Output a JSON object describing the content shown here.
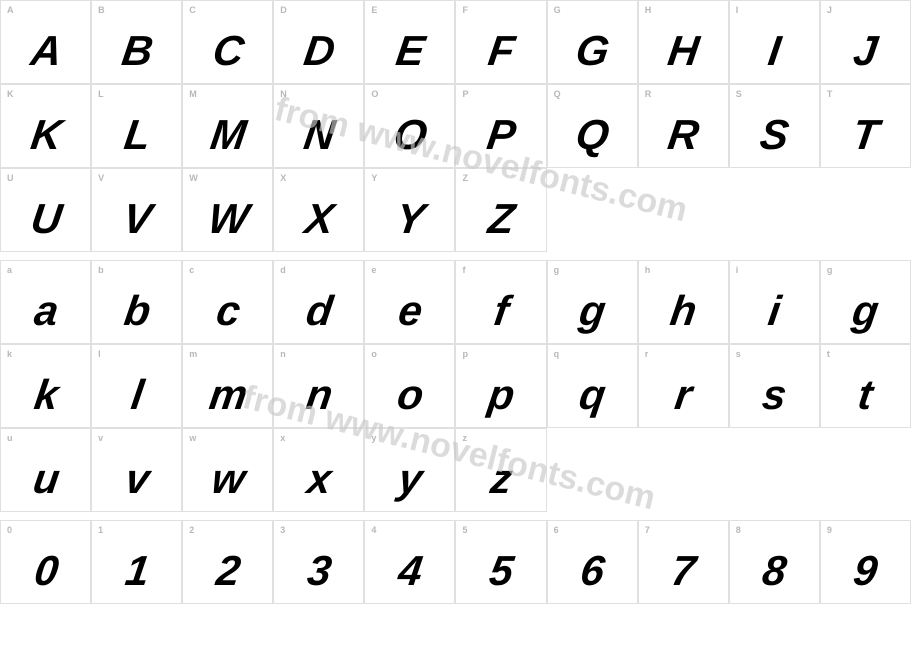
{
  "watermark_text": "from www.novelfonts.com",
  "watermark_color": "#c9c9c9",
  "watermark_fontsize": 34,
  "grid_border_color": "#e0e0e0",
  "background_color": "#ffffff",
  "label_color": "#b8b8b8",
  "label_fontsize": 9,
  "glyph_color": "#000000",
  "glyph_fontsize": 42,
  "glyph_font_style": "italic",
  "glyph_font_weight": 900,
  "rows": [
    {
      "cells": [
        {
          "label": "A",
          "glyph": "A"
        },
        {
          "label": "B",
          "glyph": "B"
        },
        {
          "label": "C",
          "glyph": "C"
        },
        {
          "label": "D",
          "glyph": "D"
        },
        {
          "label": "E",
          "glyph": "E"
        },
        {
          "label": "F",
          "glyph": "F"
        },
        {
          "label": "G",
          "glyph": "G"
        },
        {
          "label": "H",
          "glyph": "H"
        },
        {
          "label": "I",
          "glyph": "I"
        },
        {
          "label": "J",
          "glyph": "J"
        }
      ]
    },
    {
      "cells": [
        {
          "label": "K",
          "glyph": "K"
        },
        {
          "label": "L",
          "glyph": "L"
        },
        {
          "label": "M",
          "glyph": "M"
        },
        {
          "label": "N",
          "glyph": "N"
        },
        {
          "label": "O",
          "glyph": "O"
        },
        {
          "label": "P",
          "glyph": "P"
        },
        {
          "label": "Q",
          "glyph": "Q"
        },
        {
          "label": "R",
          "glyph": "R"
        },
        {
          "label": "S",
          "glyph": "S"
        },
        {
          "label": "T",
          "glyph": "T"
        }
      ]
    },
    {
      "cells": [
        {
          "label": "U",
          "glyph": "U"
        },
        {
          "label": "V",
          "glyph": "V"
        },
        {
          "label": "W",
          "glyph": "W"
        },
        {
          "label": "X",
          "glyph": "X"
        },
        {
          "label": "Y",
          "glyph": "Y"
        },
        {
          "label": "Z",
          "glyph": "Z"
        },
        {
          "empty": true
        },
        {
          "empty": true
        },
        {
          "empty": true
        },
        {
          "empty": true
        }
      ]
    },
    {
      "spacer": true
    },
    {
      "cells": [
        {
          "label": "a",
          "glyph": "a"
        },
        {
          "label": "b",
          "glyph": "b"
        },
        {
          "label": "c",
          "glyph": "c"
        },
        {
          "label": "d",
          "glyph": "d"
        },
        {
          "label": "e",
          "glyph": "e"
        },
        {
          "label": "f",
          "glyph": "f"
        },
        {
          "label": "g",
          "glyph": "g"
        },
        {
          "label": "h",
          "glyph": "h"
        },
        {
          "label": "i",
          "glyph": "i"
        },
        {
          "label": "g",
          "glyph": "g"
        }
      ]
    },
    {
      "cells": [
        {
          "label": "k",
          "glyph": "k"
        },
        {
          "label": "l",
          "glyph": "l"
        },
        {
          "label": "m",
          "glyph": "m"
        },
        {
          "label": "n",
          "glyph": "n"
        },
        {
          "label": "o",
          "glyph": "o"
        },
        {
          "label": "p",
          "glyph": "p"
        },
        {
          "label": "q",
          "glyph": "q"
        },
        {
          "label": "r",
          "glyph": "r"
        },
        {
          "label": "s",
          "glyph": "s"
        },
        {
          "label": "t",
          "glyph": "t"
        }
      ]
    },
    {
      "cells": [
        {
          "label": "u",
          "glyph": "u"
        },
        {
          "label": "v",
          "glyph": "v"
        },
        {
          "label": "w",
          "glyph": "w"
        },
        {
          "label": "x",
          "glyph": "x"
        },
        {
          "label": "y",
          "glyph": "y"
        },
        {
          "label": "z",
          "glyph": "z"
        },
        {
          "empty": true
        },
        {
          "empty": true
        },
        {
          "empty": true
        },
        {
          "empty": true
        }
      ]
    },
    {
      "spacer": true
    },
    {
      "cells": [
        {
          "label": "0",
          "glyph": "0"
        },
        {
          "label": "1",
          "glyph": "1"
        },
        {
          "label": "2",
          "glyph": "2"
        },
        {
          "label": "3",
          "glyph": "3"
        },
        {
          "label": "4",
          "glyph": "4"
        },
        {
          "label": "5",
          "glyph": "5"
        },
        {
          "label": "6",
          "glyph": "6"
        },
        {
          "label": "7",
          "glyph": "7"
        },
        {
          "label": "8",
          "glyph": "8"
        },
        {
          "label": "9",
          "glyph": "9"
        }
      ]
    }
  ]
}
